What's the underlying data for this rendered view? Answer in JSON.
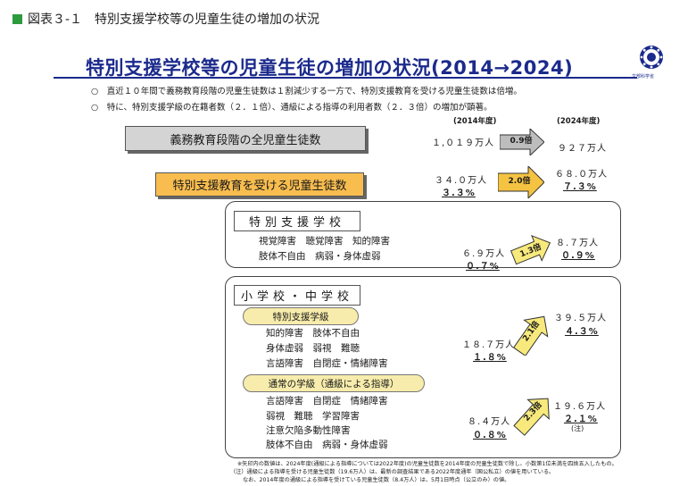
{
  "figure_label": "図表３-１　特別支援学校等の児童生徒の増加の状況",
  "title": "特別支援学校等の児童生徒の増加の状況(2014→2024)",
  "logo_text": "文部科学省",
  "bullets": [
    "○　直近１０年間で義務教育段階の児童生徒数は１割減少する一方で、特別支援教育を受ける児童生徒数は倍増。",
    "○　特に、特別支援学級の在籍者数（２．１倍）、通級による指導の利用者数（２．３倍）の増加が顕著。"
  ],
  "year_2014": "(2014年度)",
  "year_2024": "(2024年度)",
  "row_total": {
    "label": "義務教育段階の全児童生徒数",
    "v2014": "１,０１９万人",
    "v2024": "９２７万人",
    "ratio": "0.9倍"
  },
  "row_special": {
    "label": "特別支援教育を受ける児童生徒数",
    "v2014": "３４.０万人",
    "p2014": "３.３%",
    "v2024": "６８.０万人",
    "p2024": "７.３%",
    "ratio": "2.0倍"
  },
  "school": {
    "title": "特別支援学校",
    "lines": [
      "視覚障害　聴覚障害　知的障害",
      "肢体不自由　病弱・身体虚弱"
    ],
    "v2014": "６.９万人",
    "p2014": "０.７%",
    "v2024": "８.７万人",
    "p2024": "０.９%",
    "ratio": "1.3倍"
  },
  "elem": {
    "title": "小学校・中学校",
    "class_label": "特別支援学級",
    "class_lines": [
      "知的障害　肢体不自由",
      "身体虚弱　弱視　難聴",
      "言語障害　自閉症・情緒障害"
    ],
    "class_v2014": "１８.７万人",
    "class_p2014": "１.８%",
    "class_v2024": "３９.５万人",
    "class_p2024": "４.３%",
    "class_ratio": "2.1倍",
    "tsukyu_label": "通常の学級（通級による指導）",
    "tsukyu_lines": [
      "言語障害　自閉症　情緒障害",
      "弱視　難聴　学習障害",
      "注意欠陥多動性障害",
      "肢体不自由　病弱・身体虚弱"
    ],
    "tsukyu_v2014": "８.４万人",
    "tsukyu_p2014": "０.８%",
    "tsukyu_v2024": "１９.６万人",
    "tsukyu_p2024": "２.１%",
    "tsukyu_note": "(注)",
    "tsukyu_ratio": "2.3倍"
  },
  "notes": [
    "※矢印内の数値は、2024年度(通級による指導については2022年度)の児童生徒数を2014年度の児童生徒数で除し、小数第1位未満を四捨五入したもの。",
    "（注）通級による指導を受ける児童生徒数（19.6万人）は、最新の調査結果である2022年度通年（国公私立）の値を用いている。",
    "なお、2014年度の通級による指導を受けている児童生徒数（8.4万人）は、5月1日時点（公立のみ）の値。"
  ],
  "colors": {
    "accent": "#1b2a8c",
    "orange": "#f9bd4f",
    "yellow": "#f7ecab",
    "green": "#2e9a3e"
  }
}
